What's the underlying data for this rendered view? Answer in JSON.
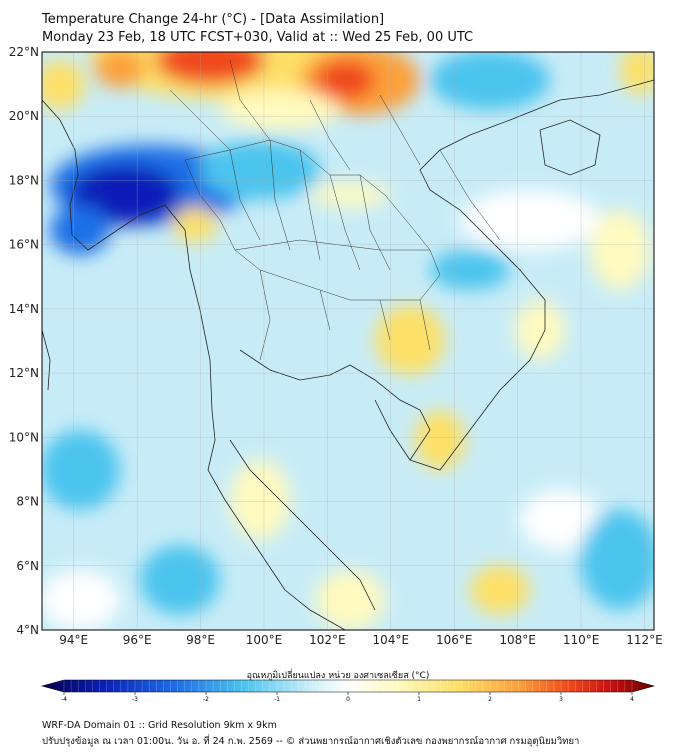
{
  "header": {
    "title_line1": "Temperature Change 24-hr (°C) - [Data Assimilation]",
    "title_line2": "Monday 23 Feb, 18 UTC FCST+030, Valid at :: Wed 25 Feb, 00 UTC"
  },
  "map": {
    "lat_labels": [
      "22°N",
      "20°N",
      "18°N",
      "16°N",
      "14°N",
      "12°N",
      "10°N",
      "8°N",
      "6°N",
      "4°N"
    ],
    "lon_labels": [
      "94°E",
      "96°E",
      "98°E",
      "100°E",
      "102°E",
      "104°E",
      "106°E",
      "108°E",
      "110°E",
      "112°E"
    ],
    "lat_range": [
      4,
      22
    ],
    "lon_range": [
      93,
      112.3
    ],
    "background_color": "#c8ecf7"
  },
  "colorbar": {
    "title": "อุณหภูมิเปลี่ยนแปลง หน่วย องศาเซลเซียส (°C)",
    "range": [
      -4,
      4
    ],
    "tick_labels": [
      "-4",
      "-3",
      "-2",
      "-1",
      "0",
      "1",
      "2",
      "3",
      "4"
    ],
    "colors": [
      "#08004a",
      "#0a1fb8",
      "#1e6fe6",
      "#4cc4ee",
      "#d8f2fa",
      "#ffffff",
      "#fffac0",
      "#fde067",
      "#fca03a",
      "#f04a1c",
      "#c81010",
      "#6a0000"
    ]
  },
  "footer": {
    "line1": "WRF-DA Domain 01 :: Grid Resolution 9km x 9km",
    "line2": "ปรับปรุงข้อมูล ณ เวลา 01:00น. วัน อ. ที่ 24 ก.พ. 2569 -- © ส่วนพยากรณ์อากาศเชิงตัวเลข กองพยากรณ์อากาศ กรมอุตุนิยมวิทยา"
  }
}
